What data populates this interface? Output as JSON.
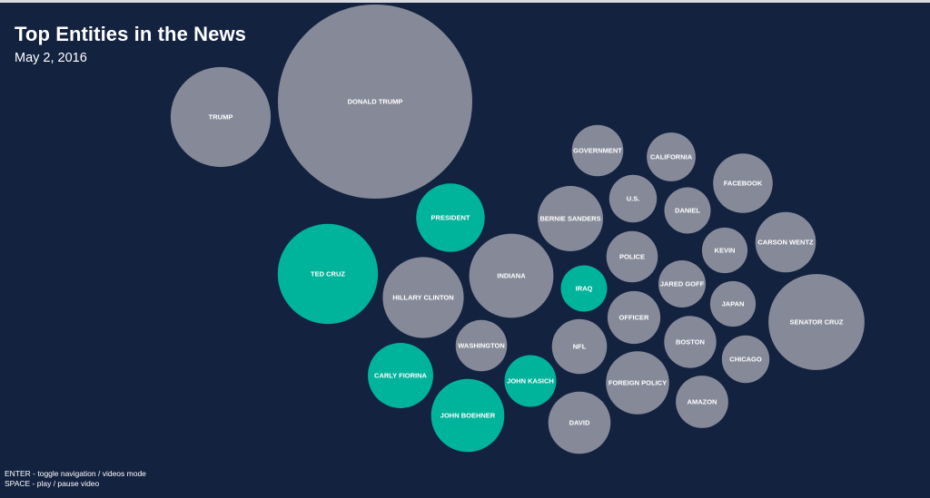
{
  "title": "Top Entities in the News",
  "subtitle": "May 2, 2016",
  "help": {
    "line1": "ENTER - toggle navigation / videos mode",
    "line2": "SPACE - play / pause video"
  },
  "colors": {
    "background": "#13223f",
    "gray_bubble": "#868a98",
    "teal_bubble": "#00b39b",
    "text": "#ffffff"
  },
  "chart_data": {
    "type": "bubble",
    "title": "Top Entities in the News",
    "subtitle": "May 2, 2016",
    "legend": "none",
    "grid": false,
    "groups": [
      "gray",
      "teal"
    ],
    "entities": [
      {
        "label": "DONALD TRUMP",
        "size": 100,
        "group": "gray"
      },
      {
        "label": "TRUMP",
        "size": 26.5,
        "group": "gray"
      },
      {
        "label": "TED CRUZ",
        "size": 26.6,
        "group": "teal"
      },
      {
        "label": "SENATOR CRUZ",
        "size": 24.4,
        "group": "gray"
      },
      {
        "label": "INDIANA",
        "size": 18.8,
        "group": "gray"
      },
      {
        "label": "HILLARY CLINTON",
        "size": 17.4,
        "group": "gray"
      },
      {
        "label": "JOHN BOEHNER",
        "size": 14.2,
        "group": "teal"
      },
      {
        "label": "CARLY FIORINA",
        "size": 11.3,
        "group": "teal"
      },
      {
        "label": "BERNIE SANDERS",
        "size": 11.3,
        "group": "gray"
      },
      {
        "label": "FOREIGN POLICY",
        "size": 10.6,
        "group": "gray"
      },
      {
        "label": "DAVID",
        "size": 10.3,
        "group": "gray"
      },
      {
        "label": "PRESIDENT",
        "size": 12.4,
        "group": "teal"
      },
      {
        "label": "CARSON WENTZ",
        "size": 9.7,
        "group": "gray"
      },
      {
        "label": "FACEBOOK",
        "size": 9.4,
        "group": "gray"
      },
      {
        "label": "NFL",
        "size": 8.0,
        "group": "gray"
      },
      {
        "label": "OFFICER",
        "size": 7.4,
        "group": "gray"
      },
      {
        "label": "WASHINGTON",
        "size": 7.0,
        "group": "gray"
      },
      {
        "label": "POLICE",
        "size": 7.0,
        "group": "gray"
      },
      {
        "label": "GOVERNMENT",
        "size": 7.0,
        "group": "gray"
      },
      {
        "label": "AMAZON",
        "size": 7.3,
        "group": "gray"
      },
      {
        "label": "BOSTON",
        "size": 7.2,
        "group": "gray"
      },
      {
        "label": "JARED GOFF",
        "size": 5.9,
        "group": "gray"
      },
      {
        "label": "CALIFORNIA",
        "size": 6.3,
        "group": "gray"
      },
      {
        "label": "CHICAGO",
        "size": 6.0,
        "group": "gray"
      },
      {
        "label": "JOHN KASICH",
        "size": 7.1,
        "group": "teal"
      },
      {
        "label": "U.S.",
        "size": 6.0,
        "group": "gray"
      },
      {
        "label": "IRAQ",
        "size": 5.7,
        "group": "teal"
      },
      {
        "label": "DANIEL",
        "size": 5.7,
        "group": "gray"
      },
      {
        "label": "KEVIN",
        "size": 5.5,
        "group": "gray"
      },
      {
        "label": "JAPAN",
        "size": 5.5,
        "group": "gray"
      }
    ]
  }
}
